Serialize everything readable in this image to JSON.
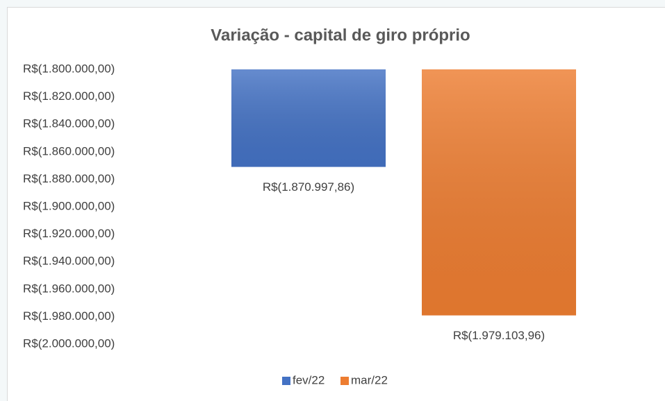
{
  "chart_data": {
    "type": "bar",
    "title": "Variação - capital de giro próprio",
    "categories": [
      null
    ],
    "series": [
      {
        "name": "fev/22",
        "color": "#4472c4",
        "values": [
          -1870997.86
        ],
        "value_labels": [
          "R$(1.870.997,86)"
        ]
      },
      {
        "name": "mar/22",
        "color": "#ed7d31",
        "values": [
          -1979103.96
        ],
        "value_labels": [
          "R$(1.979.103,96)"
        ]
      }
    ],
    "ylim": [
      -2000000,
      -1800000
    ],
    "yticks": [
      {
        "value": -1800000,
        "label": "R$(1.800.000,00)"
      },
      {
        "value": -1820000,
        "label": "R$(1.820.000,00)"
      },
      {
        "value": -1840000,
        "label": "R$(1.840.000,00)"
      },
      {
        "value": -1860000,
        "label": "R$(1.860.000,00)"
      },
      {
        "value": -1880000,
        "label": "R$(1.880.000,00)"
      },
      {
        "value": -1900000,
        "label": "R$(1.900.000,00)"
      },
      {
        "value": -1920000,
        "label": "R$(1.920.000,00)"
      },
      {
        "value": -1940000,
        "label": "R$(1.940.000,00)"
      },
      {
        "value": -1960000,
        "label": "R$(1.960.000,00)"
      },
      {
        "value": -1980000,
        "label": "R$(1.980.000,00)"
      },
      {
        "value": -2000000,
        "label": "R$(2.000.000,00)"
      }
    ],
    "grid": false,
    "legend": "bottom"
  }
}
